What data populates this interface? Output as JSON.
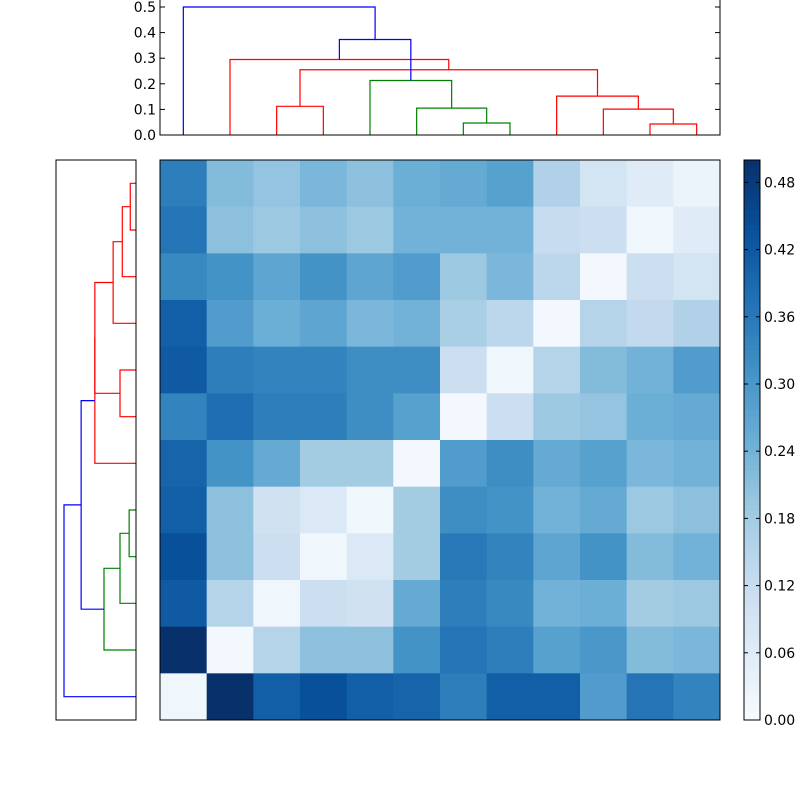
{
  "chart_data": [
    {
      "type": "heatmap",
      "title": "",
      "xlabel": "",
      "ylabel": "",
      "n_rows": 12,
      "n_cols": 12,
      "colormap": "Blues",
      "value_range": [
        0.0,
        0.5
      ],
      "values": [
        [
          0.35,
          0.22,
          0.2,
          0.23,
          0.21,
          0.25,
          0.26,
          0.28,
          0.16,
          0.09,
          0.06,
          0.03
        ],
        [
          0.37,
          0.21,
          0.19,
          0.21,
          0.19,
          0.24,
          0.24,
          0.24,
          0.12,
          0.11,
          0.02,
          0.06
        ],
        [
          0.33,
          0.31,
          0.27,
          0.31,
          0.27,
          0.29,
          0.19,
          0.23,
          0.14,
          0.01,
          0.11,
          0.09
        ],
        [
          0.41,
          0.29,
          0.25,
          0.27,
          0.23,
          0.24,
          0.17,
          0.14,
          0.01,
          0.15,
          0.13,
          0.16
        ],
        [
          0.42,
          0.35,
          0.34,
          0.34,
          0.32,
          0.32,
          0.11,
          0.02,
          0.15,
          0.22,
          0.24,
          0.29
        ],
        [
          0.34,
          0.38,
          0.35,
          0.35,
          0.32,
          0.28,
          0.01,
          0.11,
          0.19,
          0.2,
          0.25,
          0.26
        ],
        [
          0.4,
          0.31,
          0.26,
          0.18,
          0.18,
          0.01,
          0.29,
          0.32,
          0.26,
          0.28,
          0.23,
          0.24
        ],
        [
          0.41,
          0.21,
          0.1,
          0.07,
          0.02,
          0.18,
          0.32,
          0.31,
          0.24,
          0.26,
          0.19,
          0.21
        ],
        [
          0.44,
          0.21,
          0.11,
          0.02,
          0.07,
          0.18,
          0.36,
          0.34,
          0.27,
          0.31,
          0.22,
          0.24
        ],
        [
          0.42,
          0.15,
          0.02,
          0.11,
          0.1,
          0.26,
          0.35,
          0.33,
          0.24,
          0.25,
          0.18,
          0.19
        ],
        [
          0.5,
          0.01,
          0.15,
          0.21,
          0.21,
          0.31,
          0.37,
          0.35,
          0.28,
          0.3,
          0.22,
          0.23
        ],
        [
          0.02,
          0.5,
          0.41,
          0.44,
          0.41,
          0.4,
          0.35,
          0.41,
          0.41,
          0.29,
          0.37,
          0.34
        ]
      ]
    },
    {
      "type": "dendrogram",
      "orientation": "top",
      "ylim": [
        0.0,
        0.5
      ],
      "yticks": [
        "0.0",
        "0.1",
        "0.2",
        "0.3",
        "0.4",
        "0.5"
      ],
      "n_leaves": 12,
      "links": [
        {
          "left": 6,
          "right": 7,
          "height": 0.047,
          "color": "#008000"
        },
        {
          "left": 5,
          "right": 12,
          "height": 0.105,
          "color": "#008000"
        },
        {
          "left": 4,
          "right": 13,
          "height": 0.213,
          "color": "#008000"
        },
        {
          "left": 10,
          "right": 11,
          "height": 0.043,
          "color": "#ff0000"
        },
        {
          "left": 9,
          "right": 15,
          "height": 0.101,
          "color": "#ff0000"
        },
        {
          "left": 8,
          "right": 16,
          "height": 0.152,
          "color": "#ff0000"
        },
        {
          "left": 2,
          "right": 3,
          "height": 0.112,
          "color": "#ff0000"
        },
        {
          "left": 18,
          "right": 17,
          "height": 0.255,
          "color": "#ff0000"
        },
        {
          "left": 1,
          "right": 19,
          "height": 0.295,
          "color": "#ff0000"
        },
        {
          "left": 14,
          "right": 20,
          "height": 0.373,
          "color": "#0000ff"
        },
        {
          "left": 0,
          "right": 21,
          "height": 0.5,
          "color": "#0000ff"
        }
      ]
    },
    {
      "type": "dendrogram",
      "orientation": "left",
      "n_leaves": 12,
      "links": [
        {
          "left": 0,
          "right": 1,
          "height": 0.05,
          "color": "#ff0000"
        },
        {
          "left": 2,
          "right": 12,
          "height": 0.12,
          "color": "#ff0000"
        },
        {
          "left": 3,
          "right": 13,
          "height": 0.2,
          "color": "#ff0000"
        },
        {
          "left": 4,
          "right": 5,
          "height": 0.14,
          "color": "#ff0000"
        },
        {
          "left": 14,
          "right": 15,
          "height": 0.36,
          "color": "#ff0000"
        },
        {
          "left": 16,
          "right": 6,
          "height": 0.36,
          "color": "#ff0000"
        },
        {
          "left": 7,
          "right": 8,
          "height": 0.06,
          "color": "#008000"
        },
        {
          "left": 9,
          "right": 18,
          "height": 0.14,
          "color": "#008000"
        },
        {
          "left": 10,
          "right": 19,
          "height": 0.28,
          "color": "#008000"
        },
        {
          "left": 17,
          "right": 20,
          "height": 0.48,
          "color": "#0000ff"
        },
        {
          "left": 21,
          "right": 11,
          "height": 0.63,
          "color": "#0000ff"
        }
      ]
    },
    {
      "type": "colorbar",
      "ticks": [
        "0.00",
        "0.06",
        "0.12",
        "0.18",
        "0.24",
        "0.30",
        "0.36",
        "0.42",
        "0.48"
      ],
      "range": [
        0.0,
        0.5
      ],
      "colormap": "Blues"
    }
  ]
}
